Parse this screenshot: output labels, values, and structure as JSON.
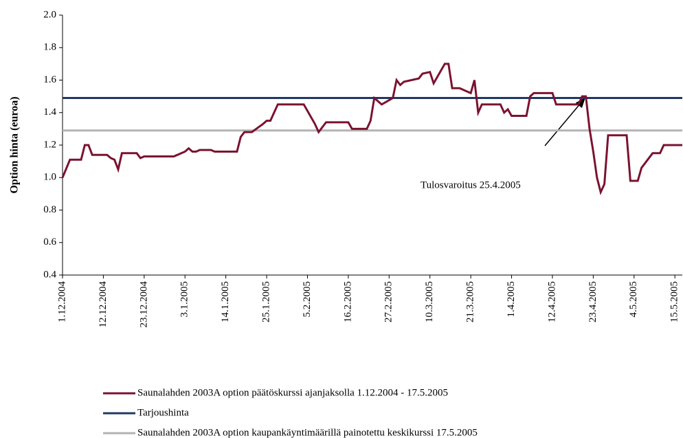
{
  "chart_data": {
    "type": "line",
    "y_label": "Option hinta (euroa)",
    "ylim": [
      0.4,
      2.0
    ],
    "yticks": [
      {
        "value": 0.4,
        "label": "0.4"
      },
      {
        "value": 0.6,
        "label": "0.6"
      },
      {
        "value": 0.8,
        "label": "0.8"
      },
      {
        "value": 1.0,
        "label": "1.0"
      },
      {
        "value": 1.2,
        "label": "1.2"
      },
      {
        "value": 1.4,
        "label": "1.4"
      },
      {
        "value": 1.6,
        "label": "1.6"
      },
      {
        "value": 1.8,
        "label": "1.8"
      },
      {
        "value": 2.0,
        "label": "2.0"
      }
    ],
    "xlim": [
      "1.12.2004",
      "17.5.2005"
    ],
    "xticks": [
      "1.12.2004",
      "12.12.2004",
      "23.12.2004",
      "3.1.2005",
      "14.1.2005",
      "25.1.2005",
      "5.2.2005",
      "16.2.2005",
      "27.2.2005",
      "10.3.2005",
      "21.3.2005",
      "1.4.2005",
      "12.4.2005",
      "23.4.2005",
      "4.5.2005",
      "15.5.2005"
    ],
    "annotation": {
      "text": "Tulosvaroitus 25.4.2005"
    },
    "series": [
      {
        "name": "Saunalahden 2003A option päätöskurssi ajanjaksolla 1.12.2004 - 17.5.2005",
        "color": "#7b1230",
        "x": [
          "1.12.2004",
          "3.12.2004",
          "6.12.2004",
          "7.12.2004",
          "8.12.2004",
          "9.12.2004",
          "13.12.2004",
          "14.12.2004",
          "15.12.2004",
          "16.12.2004",
          "17.12.2004",
          "21.12.2004",
          "22.12.2004",
          "23.12.2004",
          "31.12.2004",
          "3.1.2005",
          "4.1.2005",
          "5.1.2005",
          "6.1.2005",
          "7.1.2005",
          "10.1.2005",
          "11.1.2005",
          "17.1.2005",
          "18.1.2005",
          "19.1.2005",
          "21.1.2005",
          "24.1.2005",
          "25.1.2005",
          "26.1.2005",
          "28.1.2005",
          "4.2.2005",
          "7.2.2005",
          "8.2.2005",
          "10.2.2005",
          "16.2.2005",
          "17.2.2005",
          "21.2.2005",
          "22.2.2005",
          "23.2.2005",
          "25.2.2005",
          "28.2.2005",
          "1.3.2005",
          "2.3.2005",
          "3.3.2005",
          "7.3.2005",
          "8.3.2005",
          "10.3.2005",
          "11.3.2005",
          "14.3.2005",
          "15.3.2005",
          "16.3.2005",
          "18.3.2005",
          "21.3.2005",
          "22.3.2005",
          "23.3.2005",
          "24.3.2005",
          "29.3.2005",
          "30.3.2005",
          "31.3.2005",
          "1.4.2005",
          "5.4.2005",
          "6.4.2005",
          "7.4.2005",
          "12.4.2005",
          "13.4.2005",
          "19.4.2005",
          "20.4.2005",
          "21.4.2005",
          "22.4.2005",
          "23.4.2005",
          "24.4.2005",
          "25.4.2005",
          "26.4.2005",
          "27.4.2005",
          "2.5.2005",
          "3.5.2005",
          "5.5.2005",
          "6.5.2005",
          "9.5.2005",
          "11.5.2005",
          "12.5.2005",
          "17.5.2005"
        ],
        "values": [
          1.0,
          1.11,
          1.11,
          1.2,
          1.2,
          1.14,
          1.14,
          1.12,
          1.11,
          1.05,
          1.15,
          1.15,
          1.12,
          1.13,
          1.13,
          1.16,
          1.18,
          1.16,
          1.16,
          1.17,
          1.17,
          1.16,
          1.16,
          1.25,
          1.28,
          1.28,
          1.33,
          1.35,
          1.35,
          1.45,
          1.45,
          1.33,
          1.28,
          1.34,
          1.34,
          1.3,
          1.3,
          1.35,
          1.49,
          1.45,
          1.49,
          1.6,
          1.57,
          1.59,
          1.61,
          1.64,
          1.65,
          1.58,
          1.7,
          1.7,
          1.55,
          1.55,
          1.52,
          1.6,
          1.4,
          1.45,
          1.45,
          1.4,
          1.42,
          1.38,
          1.38,
          1.5,
          1.52,
          1.52,
          1.45,
          1.45,
          1.5,
          1.5,
          1.3,
          1.16,
          1.0,
          0.91,
          0.96,
          1.26,
          1.26,
          0.98,
          0.98,
          1.06,
          1.15,
          1.15,
          1.2,
          1.2
        ]
      },
      {
        "name": "Tarjoushinta",
        "color": "#1f3864",
        "x": [
          "1.12.2004",
          "17.5.2005"
        ],
        "values": [
          1.49,
          1.49
        ]
      },
      {
        "name": "Saunalahden 2003A option kaupankäyntimäärillä painotettu keskikurssi 17.5.2005",
        "color": "#b3b3b3",
        "x": [
          "1.12.2004",
          "17.5.2005"
        ],
        "values": [
          1.29,
          1.29
        ]
      }
    ]
  }
}
